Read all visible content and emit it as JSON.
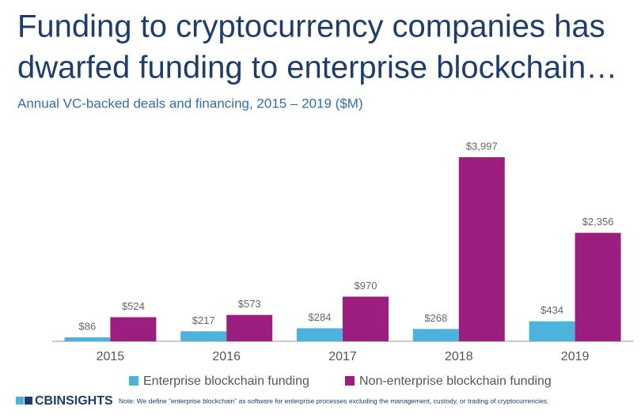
{
  "chart_data": {
    "type": "bar",
    "title_lines": [
      "Funding to cryptocurrency companies has",
      "dwarfed funding to enterprise blockchain…"
    ],
    "subtitle": "Annual VC-backed deals and financing, 2015 – 2019 ($M)",
    "categories": [
      "2015",
      "2016",
      "2017",
      "2018",
      "2019"
    ],
    "series": [
      {
        "name": "Enterprise blockchain funding",
        "color": "#4db3dc",
        "values": [
          86,
          217,
          284,
          268,
          434
        ],
        "value_labels": [
          "$86",
          "$217",
          "$284",
          "$268",
          "$434"
        ]
      },
      {
        "name": "Non-enterprise blockchain funding",
        "color": "#9c1f80",
        "values": [
          524,
          573,
          970,
          3997,
          2356
        ],
        "value_labels": [
          "$524",
          "$573",
          "$970",
          "$3,997",
          "$2,356"
        ]
      }
    ],
    "legend": "bottom"
  },
  "footer": {
    "logo": "CBINSIGHTS",
    "note": "Note: We define “enterprise blockchain” as software for enterprise processes excluding the management, custody, or trading of cryptocurrencies."
  }
}
